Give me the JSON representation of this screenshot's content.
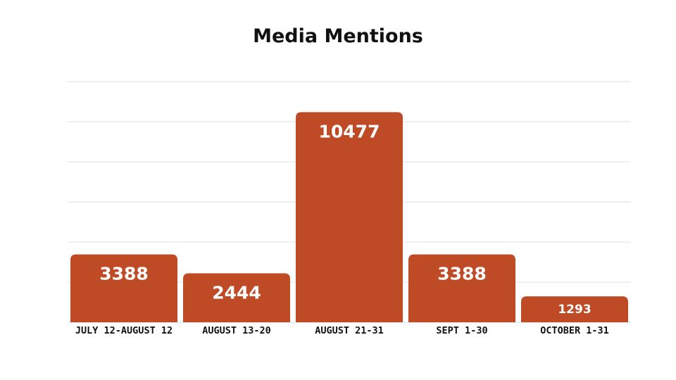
{
  "chart_data": {
    "type": "bar",
    "title": "Media Mentions",
    "xlabel": "",
    "ylabel": "",
    "categories": [
      "JULY 12-AUGUST 12",
      "AUGUST 13-20",
      "AUGUST 21-31",
      "SEPT 1-30",
      "OCTOBER 1-31"
    ],
    "values": [
      3388,
      2444,
      10477,
      3388,
      1293
    ],
    "ylim": [
      0,
      12000
    ],
    "grid": true,
    "data_labels": true,
    "bar_color": "#BF4A26",
    "grid_color": "#E2E2E2"
  }
}
